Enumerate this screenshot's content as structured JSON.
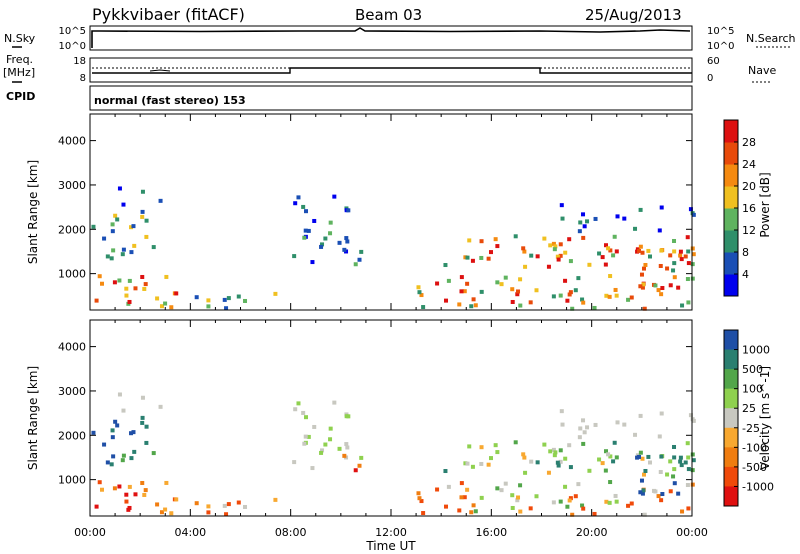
{
  "header": {
    "title": "Pykkvibaer (fitACF)",
    "beam": "Beam 03",
    "date": "25/Aug/2013"
  },
  "nsky_panel": {
    "left_label": "N.Sky",
    "left_ticks": [
      "10^5",
      "10^0"
    ],
    "right_label": "N.Search",
    "right_ticks": [
      "10^5",
      "10^0"
    ]
  },
  "freq_panel": {
    "left_label_1": "Freq.",
    "left_label_2": "[MHz]",
    "left_ticks": [
      "18",
      "8"
    ],
    "right_label": "Nave",
    "right_ticks": [
      "60",
      "0"
    ]
  },
  "cpid_panel": {
    "label": "CPID",
    "text": "normal (fast stereo) 153"
  },
  "colors": {
    "power_scale": [
      "#0000ee",
      "#1a4fb5",
      "#2f8f6a",
      "#5fb35f",
      "#f0c020",
      "#f58a10",
      "#e84a0a",
      "#dd1010"
    ],
    "velocity_scale": [
      "#e01010",
      "#f04a0a",
      "#f07d10",
      "#f8a830",
      "#c8c8c0",
      "#8fd14f",
      "#52a64a",
      "#2a7f70",
      "#1f4fa6"
    ]
  },
  "chart_data": [
    {
      "type": "heatmap",
      "quantity": "Power",
      "title": "",
      "xlabel": "",
      "ylabel": "Slant Range [km]",
      "xlim": [
        "00:00",
        "24:00"
      ],
      "ylim": [
        180,
        4600
      ],
      "yticks": [
        "1000",
        "2000",
        "3000",
        "4000"
      ],
      "colorbar": {
        "label": "Power [dB]",
        "range": [
          0,
          32
        ],
        "ticks": [
          "4",
          "8",
          "12",
          "16",
          "20",
          "24",
          "28"
        ]
      }
    },
    {
      "type": "heatmap",
      "quantity": "Velocity",
      "title": "",
      "xlabel": "Time UT",
      "ylabel": "Slant Range [km]",
      "xlim": [
        "00:00",
        "24:00"
      ],
      "ylim": [
        180,
        4600
      ],
      "xticks": [
        "00:00",
        "04:00",
        "08:00",
        "12:00",
        "16:00",
        "20:00",
        "00:00"
      ],
      "yticks": [
        "1000",
        "2000",
        "3000",
        "4000"
      ],
      "colorbar": {
        "label": "Velocity [m s^-1]",
        "ticks": [
          "1000",
          "500",
          "100",
          "25",
          "-25",
          "-100",
          "-500",
          "-1000"
        ]
      }
    }
  ]
}
